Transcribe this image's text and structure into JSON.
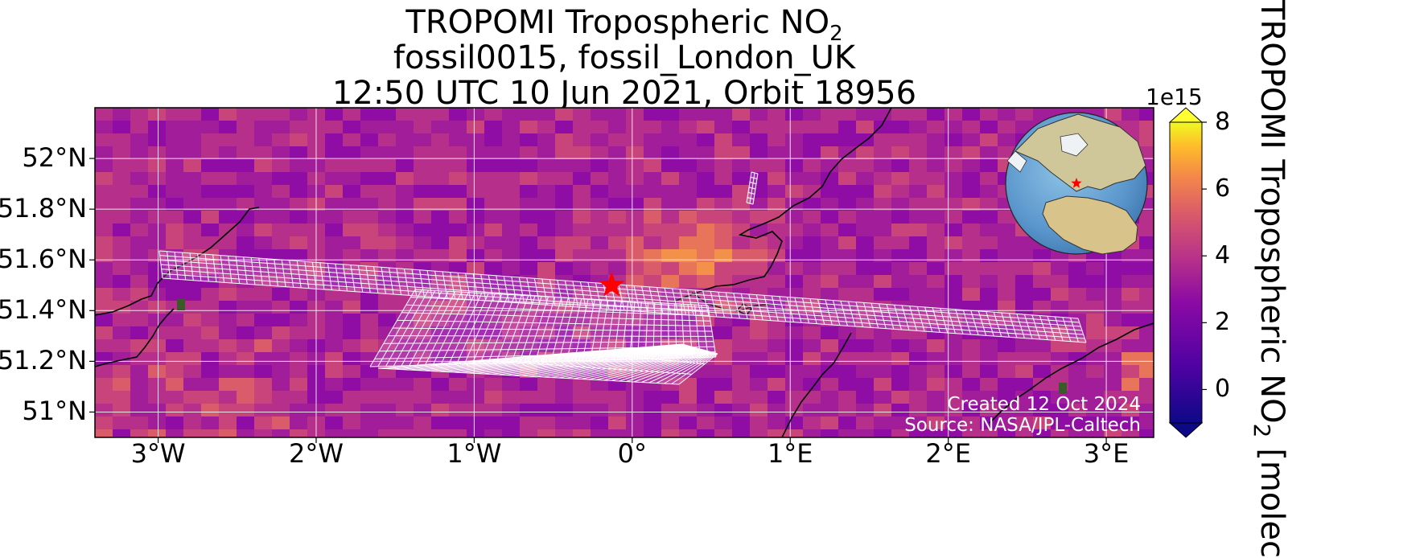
{
  "title": {
    "line1": "TROPOMI Tropospheric NO",
    "line1_sub": "2",
    "line2": "fossil0015, fossil_London_UK",
    "line3": "12:50 UTC 10 Jun 2021, Orbit 18956"
  },
  "map": {
    "lon_range": [
      -3.4,
      3.3
    ],
    "lat_range": [
      50.9,
      52.2
    ],
    "x_ticks": [
      {
        "value": -3,
        "label": "3°W"
      },
      {
        "value": -2,
        "label": "2°W"
      },
      {
        "value": -1,
        "label": "1°W"
      },
      {
        "value": 0,
        "label": "0°"
      },
      {
        "value": 1,
        "label": "1°E"
      },
      {
        "value": 2,
        "label": "2°E"
      },
      {
        "value": 3,
        "label": "3°E"
      }
    ],
    "y_ticks": [
      {
        "value": 52.0,
        "label": "52°N"
      },
      {
        "value": 51.8,
        "label": "51.8°N"
      },
      {
        "value": 51.6,
        "label": "51.6°N"
      },
      {
        "value": 51.4,
        "label": "51.4°N"
      },
      {
        "value": 51.2,
        "label": "51.2°N"
      },
      {
        "value": 51.0,
        "label": "51°N"
      }
    ],
    "gridlines": true,
    "target_site": {
      "lon": -0.13,
      "lat": 51.5,
      "marker": "red-star"
    },
    "colormap": "plasma"
  },
  "colorbar": {
    "exponent_label": "1e15",
    "ticks": [
      {
        "value": 8,
        "label": "8"
      },
      {
        "value": 6,
        "label": "6"
      },
      {
        "value": 4,
        "label": "4"
      },
      {
        "value": 2,
        "label": "2"
      },
      {
        "value": 0,
        "label": "0"
      }
    ],
    "range": [
      -1,
      8
    ],
    "label": "TROPOMI Tropospheric NO",
    "label_sub": "2",
    "label_tail": " [molec"
  },
  "credit": {
    "line1": "Created 12 Oct 2024",
    "line2": "Source: NASA/JPL-Caltech"
  },
  "colors": {
    "star": "#ff0000",
    "grid": "#ffffff",
    "coast": "#000000",
    "cb_low": "#0d0887",
    "cb_high": "#ffff33"
  }
}
